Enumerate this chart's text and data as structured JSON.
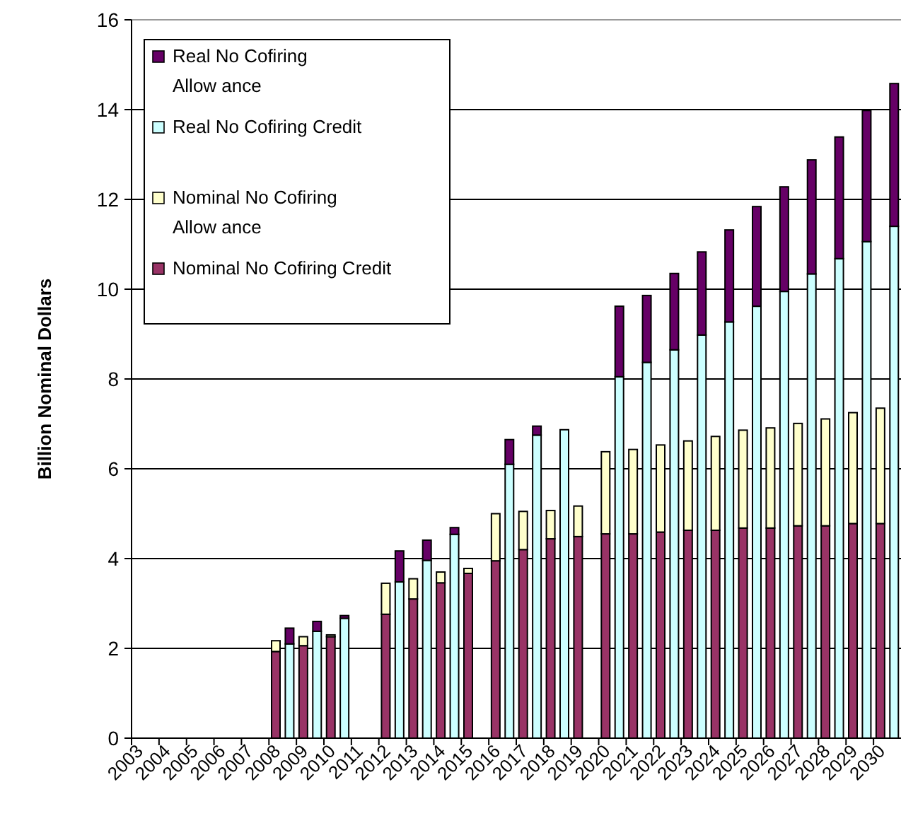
{
  "chart_data": {
    "type": "bar",
    "ylabel": "Billion Nominal Dollars",
    "categories": [
      "2003",
      null,
      "2004",
      null,
      "2005",
      null,
      "2006",
      null,
      "2007",
      null,
      "2008",
      null,
      "2009",
      null,
      "2010",
      null,
      "2011",
      null,
      "2012",
      null,
      "2013",
      null,
      "2014",
      null,
      "2015",
      null,
      "2016",
      null,
      "2017",
      null,
      "2018",
      null,
      "2019",
      null,
      "2020",
      null,
      "2021",
      null,
      "2022",
      null,
      "2023",
      null,
      "2024",
      null,
      "2025",
      null,
      "2026",
      null,
      "2027",
      null,
      "2028",
      null,
      "2029",
      null,
      "2030",
      null
    ],
    "stacked": true,
    "series": [
      {
        "name": "Nominal No Cofiring Credit",
        "color": "#993366",
        "values": [
          null,
          null,
          null,
          null,
          null,
          null,
          null,
          null,
          null,
          null,
          1.93,
          null,
          2.06,
          null,
          2.26,
          null,
          null,
          null,
          2.76,
          null,
          3.1,
          null,
          3.46,
          null,
          3.67,
          null,
          3.95,
          null,
          4.2,
          null,
          4.44,
          null,
          4.49,
          null,
          4.55,
          null,
          4.55,
          null,
          4.59,
          null,
          4.63,
          null,
          4.63,
          null,
          4.68,
          null,
          4.68,
          null,
          4.73,
          null,
          4.73,
          null,
          4.78,
          null,
          4.78,
          null
        ]
      },
      {
        "name": "Nominal No Cofiring\nAllow ance",
        "color": "#ffffcc",
        "values": [
          null,
          null,
          null,
          null,
          null,
          null,
          null,
          null,
          null,
          null,
          0.24,
          null,
          0.2,
          null,
          0.04,
          null,
          null,
          null,
          0.69,
          null,
          0.45,
          null,
          0.24,
          null,
          0.11,
          null,
          1.05,
          null,
          0.85,
          null,
          0.63,
          null,
          0.68,
          null,
          1.83,
          null,
          1.88,
          null,
          1.94,
          null,
          1.99,
          null,
          2.09,
          null,
          2.18,
          null,
          2.23,
          null,
          2.28,
          null,
          2.38,
          null,
          2.47,
          null,
          2.57,
          null
        ]
      },
      {
        "name": "Real No Cofiring Credit",
        "color": "#ccffff",
        "values": [
          null,
          null,
          null,
          null,
          null,
          null,
          null,
          null,
          null,
          null,
          null,
          2.1,
          null,
          2.38,
          null,
          2.67,
          null,
          null,
          null,
          3.48,
          null,
          3.96,
          null,
          4.54,
          null,
          null,
          null,
          6.1,
          null,
          6.75,
          null,
          6.87,
          null,
          null,
          null,
          8.05,
          null,
          8.37,
          null,
          8.65,
          null,
          8.98,
          null,
          9.27,
          null,
          9.62,
          null,
          9.95,
          null,
          10.34,
          null,
          10.68,
          null,
          11.06,
          null,
          11.4
        ]
      },
      {
        "name": "Real No Cofiring\nAllow ance",
        "color": "#660066",
        "values": [
          null,
          null,
          null,
          null,
          null,
          null,
          null,
          null,
          null,
          null,
          null,
          0.35,
          null,
          0.22,
          null,
          0.06,
          null,
          null,
          null,
          0.69,
          null,
          0.45,
          null,
          0.15,
          null,
          null,
          null,
          0.55,
          null,
          0.2,
          null,
          null,
          null,
          null,
          null,
          1.57,
          null,
          1.49,
          null,
          1.7,
          null,
          1.85,
          null,
          2.05,
          null,
          2.22,
          null,
          2.33,
          null,
          2.54,
          null,
          2.71,
          null,
          2.92,
          null,
          3.18
        ]
      }
    ],
    "ylim": [
      0,
      16
    ],
    "yticks": [
      0,
      2,
      4,
      6,
      8,
      10,
      12,
      14,
      16
    ],
    "grid": "y",
    "legend": "top left"
  }
}
